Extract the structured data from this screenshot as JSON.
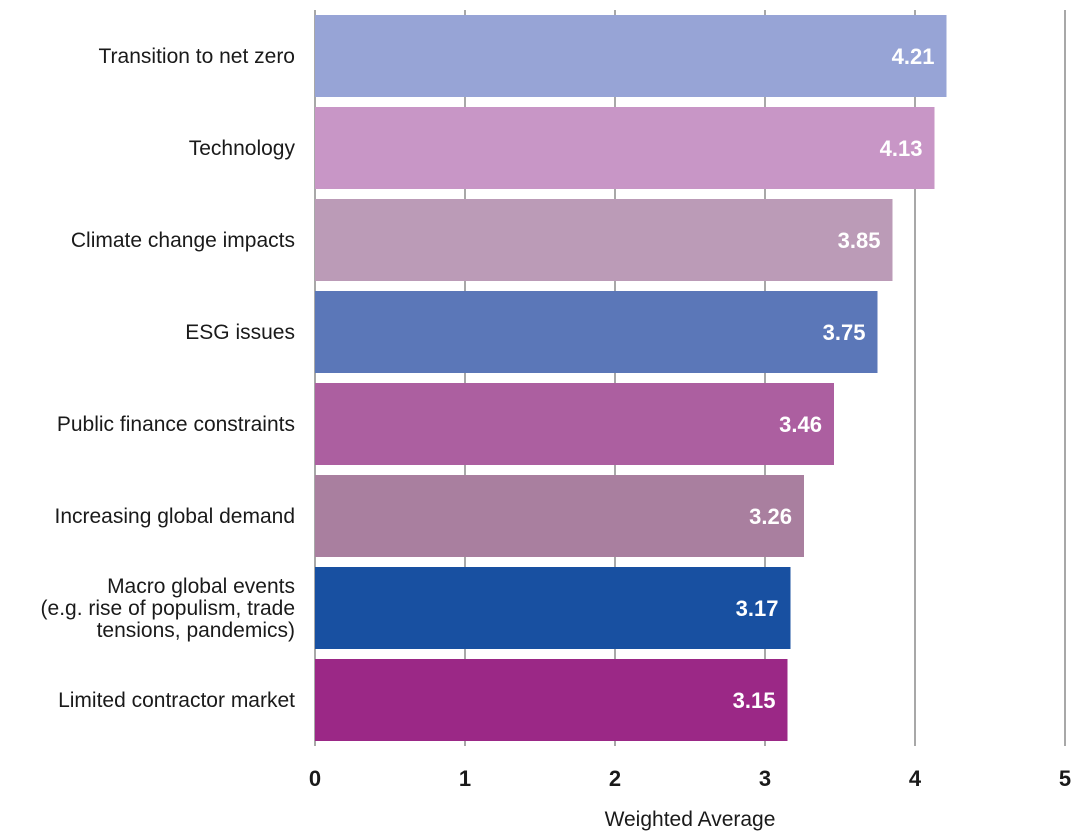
{
  "chart_data": {
    "type": "bar",
    "orientation": "horizontal",
    "categories": [
      "Transition to net zero",
      "Technology",
      "Climate change impacts",
      "ESG issues",
      "Public finance constraints",
      "Increasing global demand",
      "Macro global events\n(e.g. rise of populism, trade\ntensions, pandemics)",
      "Limited contractor market"
    ],
    "values": [
      4.21,
      4.13,
      3.85,
      3.75,
      3.46,
      3.26,
      3.17,
      3.15
    ],
    "value_labels": [
      "4.21",
      "4.13",
      "3.85",
      "3.75",
      "3.46",
      "3.26",
      "3.17",
      "3.15"
    ],
    "colors": [
      "#97a4d6",
      "#c896c6",
      "#bb9bb7",
      "#5b77b8",
      "#ac5fa0",
      "#a97f9f",
      "#1850a1",
      "#9b2886"
    ],
    "xlabel": "Weighted Average",
    "xlim": [
      0,
      5
    ],
    "xticks": [
      0,
      1,
      2,
      3,
      4,
      5
    ],
    "xtick_labels": [
      "0",
      "1",
      "2",
      "3",
      "4",
      "5"
    ],
    "grid": "vertical",
    "grid_color": "#8c8c8c",
    "label_color": "#ffffff",
    "title": "",
    "ylabel": ""
  }
}
